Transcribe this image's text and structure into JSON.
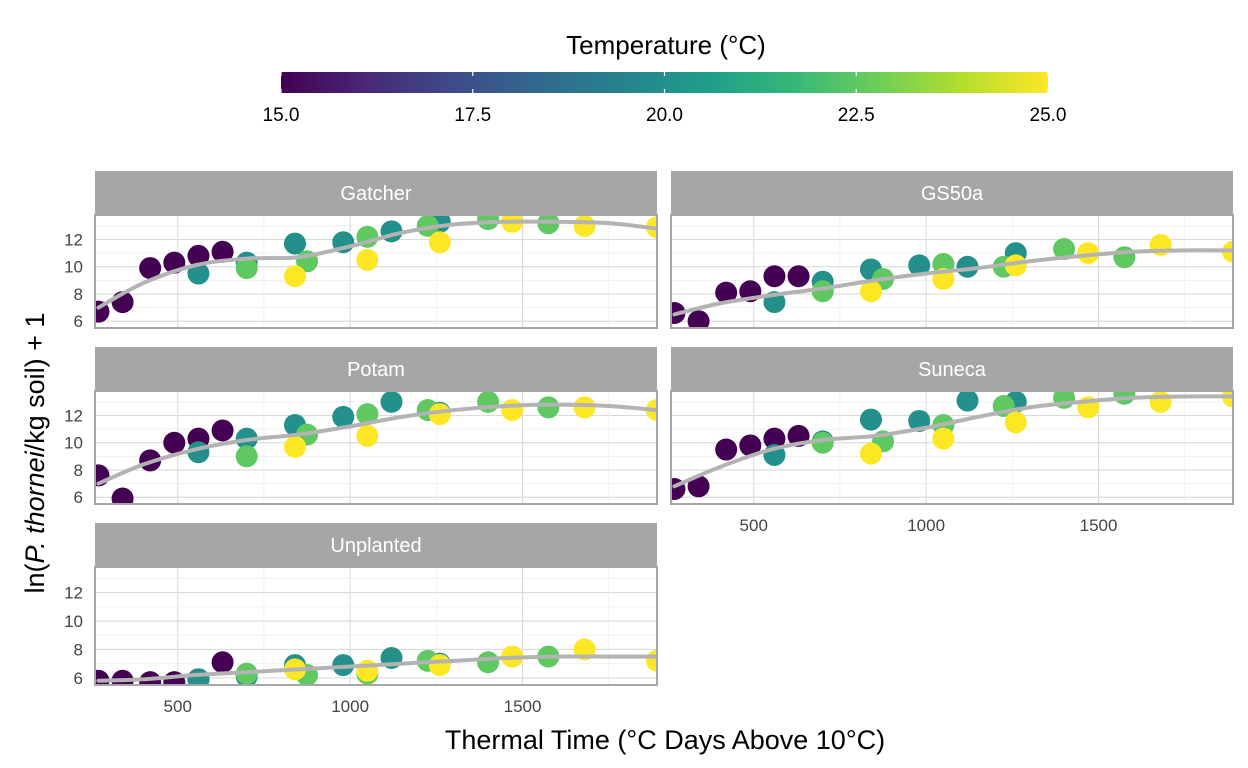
{
  "chart_data": {
    "type": "scatter",
    "x_label": "Thermal Time (°C Days Above 10°C)",
    "y_label": {
      "prefix": "ln(",
      "italic": "P. thornei",
      "suffix": "/kg soil) + 1"
    },
    "xlim": [
      260,
      1890
    ],
    "ylim": [
      5.5,
      13.8
    ],
    "x_ticks": [
      500,
      1000,
      1500
    ],
    "y_ticks": [
      6,
      8,
      10,
      12
    ],
    "grid": true,
    "smooth_color": "#b3b3b3",
    "color_scale": {
      "title": "Temperature (°C)",
      "palette": "viridis",
      "min": 15,
      "max": 25,
      "ticks": [
        "15.0",
        "17.5",
        "20.0",
        "22.5",
        "25.0"
      ],
      "colors": [
        "#440154",
        "#482878",
        "#3E4A89",
        "#31688E",
        "#26828E",
        "#1F9E89",
        "#35B779",
        "#6DCD59",
        "#B4DE2C",
        "#FDE725"
      ]
    },
    "panels": [
      {
        "name": "Gatcher",
        "points": [
          {
            "x": 270,
            "y": 6.7,
            "t": 15
          },
          {
            "x": 340,
            "y": 7.4,
            "t": 15
          },
          {
            "x": 420,
            "y": 9.9,
            "t": 15
          },
          {
            "x": 490,
            "y": 10.3,
            "t": 15
          },
          {
            "x": 560,
            "y": 10.8,
            "t": 15
          },
          {
            "x": 630,
            "y": 11.1,
            "t": 15
          },
          {
            "x": 560,
            "y": 9.5,
            "t": 20
          },
          {
            "x": 700,
            "y": 10.3,
            "t": 20
          },
          {
            "x": 840,
            "y": 11.7,
            "t": 20
          },
          {
            "x": 980,
            "y": 11.8,
            "t": 20
          },
          {
            "x": 1120,
            "y": 12.6,
            "t": 20
          },
          {
            "x": 1260,
            "y": 13.3,
            "t": 20
          },
          {
            "x": 700,
            "y": 9.9,
            "t": 22.5
          },
          {
            "x": 875,
            "y": 10.4,
            "t": 22.5
          },
          {
            "x": 1050,
            "y": 12.2,
            "t": 22.5
          },
          {
            "x": 1225,
            "y": 13.0,
            "t": 22.5
          },
          {
            "x": 1400,
            "y": 13.5,
            "t": 22.5
          },
          {
            "x": 1575,
            "y": 13.2,
            "t": 22.5
          },
          {
            "x": 840,
            "y": 9.3,
            "t": 25
          },
          {
            "x": 1050,
            "y": 10.5,
            "t": 25
          },
          {
            "x": 1260,
            "y": 11.8,
            "t": 25
          },
          {
            "x": 1470,
            "y": 13.3,
            "t": 25
          },
          {
            "x": 1680,
            "y": 13.0,
            "t": 25
          },
          {
            "x": 1890,
            "y": 12.9,
            "t": 25
          }
        ],
        "smooth": [
          [
            270,
            7.0
          ],
          [
            400,
            8.8
          ],
          [
            550,
            10.1
          ],
          [
            700,
            10.6
          ],
          [
            850,
            10.7
          ],
          [
            1000,
            11.5
          ],
          [
            1150,
            12.5
          ],
          [
            1300,
            13.1
          ],
          [
            1450,
            13.3
          ],
          [
            1600,
            13.3
          ],
          [
            1750,
            13.2
          ],
          [
            1890,
            12.8
          ]
        ]
      },
      {
        "name": "GS50a",
        "points": [
          {
            "x": 270,
            "y": 6.6,
            "t": 15
          },
          {
            "x": 340,
            "y": 6.0,
            "t": 15
          },
          {
            "x": 420,
            "y": 8.1,
            "t": 15
          },
          {
            "x": 490,
            "y": 8.2,
            "t": 15
          },
          {
            "x": 560,
            "y": 9.3,
            "t": 15
          },
          {
            "x": 630,
            "y": 9.3,
            "t": 15
          },
          {
            "x": 560,
            "y": 7.4,
            "t": 20
          },
          {
            "x": 700,
            "y": 8.9,
            "t": 20
          },
          {
            "x": 840,
            "y": 9.8,
            "t": 20
          },
          {
            "x": 980,
            "y": 10.1,
            "t": 20
          },
          {
            "x": 1120,
            "y": 10.0,
            "t": 20
          },
          {
            "x": 1260,
            "y": 11.0,
            "t": 20
          },
          {
            "x": 700,
            "y": 8.2,
            "t": 22.5
          },
          {
            "x": 875,
            "y": 9.1,
            "t": 22.5
          },
          {
            "x": 1050,
            "y": 10.2,
            "t": 22.5
          },
          {
            "x": 1225,
            "y": 10.0,
            "t": 22.5
          },
          {
            "x": 1400,
            "y": 11.3,
            "t": 22.5
          },
          {
            "x": 1575,
            "y": 10.7,
            "t": 22.5
          },
          {
            "x": 840,
            "y": 8.2,
            "t": 25
          },
          {
            "x": 1050,
            "y": 9.1,
            "t": 25
          },
          {
            "x": 1260,
            "y": 10.1,
            "t": 25
          },
          {
            "x": 1470,
            "y": 11.0,
            "t": 25
          },
          {
            "x": 1680,
            "y": 11.6,
            "t": 25
          },
          {
            "x": 1890,
            "y": 11.1,
            "t": 25
          }
        ],
        "smooth": [
          [
            270,
            6.5
          ],
          [
            400,
            7.3
          ],
          [
            550,
            7.9
          ],
          [
            700,
            8.4
          ],
          [
            850,
            9.0
          ],
          [
            1000,
            9.5
          ],
          [
            1150,
            9.9
          ],
          [
            1300,
            10.4
          ],
          [
            1450,
            10.8
          ],
          [
            1600,
            11.1
          ],
          [
            1750,
            11.2
          ],
          [
            1890,
            11.2
          ]
        ]
      },
      {
        "name": "Potam",
        "points": [
          {
            "x": 270,
            "y": 7.6,
            "t": 15
          },
          {
            "x": 340,
            "y": 5.9,
            "t": 15
          },
          {
            "x": 420,
            "y": 8.7,
            "t": 15
          },
          {
            "x": 490,
            "y": 10.0,
            "t": 15
          },
          {
            "x": 560,
            "y": 10.3,
            "t": 15
          },
          {
            "x": 630,
            "y": 10.9,
            "t": 15
          },
          {
            "x": 560,
            "y": 9.3,
            "t": 20
          },
          {
            "x": 700,
            "y": 10.3,
            "t": 20
          },
          {
            "x": 840,
            "y": 11.3,
            "t": 20
          },
          {
            "x": 980,
            "y": 11.9,
            "t": 20
          },
          {
            "x": 1120,
            "y": 13.0,
            "t": 20
          },
          {
            "x": 1260,
            "y": 12.2,
            "t": 20
          },
          {
            "x": 700,
            "y": 9.0,
            "t": 22.5
          },
          {
            "x": 875,
            "y": 10.6,
            "t": 22.5
          },
          {
            "x": 1050,
            "y": 12.1,
            "t": 22.5
          },
          {
            "x": 1225,
            "y": 12.4,
            "t": 22.5
          },
          {
            "x": 1400,
            "y": 13.0,
            "t": 22.5
          },
          {
            "x": 1575,
            "y": 12.6,
            "t": 22.5
          },
          {
            "x": 840,
            "y": 9.7,
            "t": 25
          },
          {
            "x": 1050,
            "y": 10.5,
            "t": 25
          },
          {
            "x": 1260,
            "y": 12.1,
            "t": 25
          },
          {
            "x": 1470,
            "y": 12.4,
            "t": 25
          },
          {
            "x": 1680,
            "y": 12.6,
            "t": 25
          },
          {
            "x": 1890,
            "y": 12.4,
            "t": 25
          }
        ],
        "smooth": [
          [
            270,
            7.0
          ],
          [
            400,
            8.4
          ],
          [
            550,
            9.5
          ],
          [
            700,
            10.2
          ],
          [
            850,
            10.6
          ],
          [
            1000,
            11.2
          ],
          [
            1150,
            11.9
          ],
          [
            1300,
            12.4
          ],
          [
            1450,
            12.7
          ],
          [
            1600,
            12.8
          ],
          [
            1750,
            12.7
          ],
          [
            1890,
            12.4
          ]
        ]
      },
      {
        "name": "Suneca",
        "points": [
          {
            "x": 270,
            "y": 6.6,
            "t": 15
          },
          {
            "x": 340,
            "y": 6.8,
            "t": 15
          },
          {
            "x": 420,
            "y": 9.5,
            "t": 15
          },
          {
            "x": 490,
            "y": 9.8,
            "t": 15
          },
          {
            "x": 560,
            "y": 10.3,
            "t": 15
          },
          {
            "x": 630,
            "y": 10.5,
            "t": 15
          },
          {
            "x": 560,
            "y": 9.1,
            "t": 20
          },
          {
            "x": 700,
            "y": 10.1,
            "t": 20
          },
          {
            "x": 840,
            "y": 11.7,
            "t": 20
          },
          {
            "x": 980,
            "y": 11.6,
            "t": 20
          },
          {
            "x": 1120,
            "y": 13.1,
            "t": 20
          },
          {
            "x": 1260,
            "y": 13.0,
            "t": 20
          },
          {
            "x": 700,
            "y": 10.0,
            "t": 22.5
          },
          {
            "x": 875,
            "y": 10.1,
            "t": 22.5
          },
          {
            "x": 1050,
            "y": 11.3,
            "t": 22.5
          },
          {
            "x": 1225,
            "y": 12.7,
            "t": 22.5
          },
          {
            "x": 1400,
            "y": 13.3,
            "t": 22.5
          },
          {
            "x": 1575,
            "y": 13.6,
            "t": 22.5
          },
          {
            "x": 840,
            "y": 9.2,
            "t": 25
          },
          {
            "x": 1050,
            "y": 10.3,
            "t": 25
          },
          {
            "x": 1260,
            "y": 11.5,
            "t": 25
          },
          {
            "x": 1470,
            "y": 12.6,
            "t": 25
          },
          {
            "x": 1680,
            "y": 13.0,
            "t": 25
          },
          {
            "x": 1890,
            "y": 13.4,
            "t": 25
          }
        ],
        "smooth": [
          [
            270,
            6.8
          ],
          [
            400,
            8.2
          ],
          [
            550,
            9.5
          ],
          [
            700,
            10.2
          ],
          [
            850,
            10.5
          ],
          [
            1000,
            11.1
          ],
          [
            1150,
            11.9
          ],
          [
            1300,
            12.6
          ],
          [
            1450,
            13.0
          ],
          [
            1600,
            13.3
          ],
          [
            1750,
            13.4
          ],
          [
            1890,
            13.4
          ]
        ]
      },
      {
        "name": "Unplanted",
        "points": [
          {
            "x": 270,
            "y": 5.8,
            "t": 15
          },
          {
            "x": 340,
            "y": 5.8,
            "t": 15
          },
          {
            "x": 420,
            "y": 5.7,
            "t": 15
          },
          {
            "x": 490,
            "y": 5.7,
            "t": 15
          },
          {
            "x": 560,
            "y": 5.9,
            "t": 15
          },
          {
            "x": 630,
            "y": 7.1,
            "t": 15
          },
          {
            "x": 560,
            "y": 5.9,
            "t": 20
          },
          {
            "x": 700,
            "y": 6.1,
            "t": 20
          },
          {
            "x": 840,
            "y": 6.9,
            "t": 20
          },
          {
            "x": 980,
            "y": 6.9,
            "t": 20
          },
          {
            "x": 1120,
            "y": 7.4,
            "t": 20
          },
          {
            "x": 1260,
            "y": 7.0,
            "t": 20
          },
          {
            "x": 700,
            "y": 6.3,
            "t": 22.5
          },
          {
            "x": 875,
            "y": 6.2,
            "t": 22.5
          },
          {
            "x": 1050,
            "y": 6.3,
            "t": 22.5
          },
          {
            "x": 1225,
            "y": 7.2,
            "t": 22.5
          },
          {
            "x": 1400,
            "y": 7.1,
            "t": 22.5
          },
          {
            "x": 1575,
            "y": 7.5,
            "t": 22.5
          },
          {
            "x": 840,
            "y": 6.6,
            "t": 25
          },
          {
            "x": 1050,
            "y": 6.5,
            "t": 25
          },
          {
            "x": 1260,
            "y": 6.9,
            "t": 25
          },
          {
            "x": 1470,
            "y": 7.5,
            "t": 25
          },
          {
            "x": 1680,
            "y": 8.0,
            "t": 25
          },
          {
            "x": 1890,
            "y": 7.2,
            "t": 25
          }
        ],
        "smooth": [
          [
            270,
            5.8
          ],
          [
            400,
            5.9
          ],
          [
            550,
            6.2
          ],
          [
            700,
            6.4
          ],
          [
            850,
            6.6
          ],
          [
            1000,
            6.8
          ],
          [
            1150,
            7.0
          ],
          [
            1300,
            7.2
          ],
          [
            1450,
            7.4
          ],
          [
            1600,
            7.5
          ],
          [
            1750,
            7.5
          ],
          [
            1890,
            7.5
          ]
        ]
      }
    ]
  }
}
